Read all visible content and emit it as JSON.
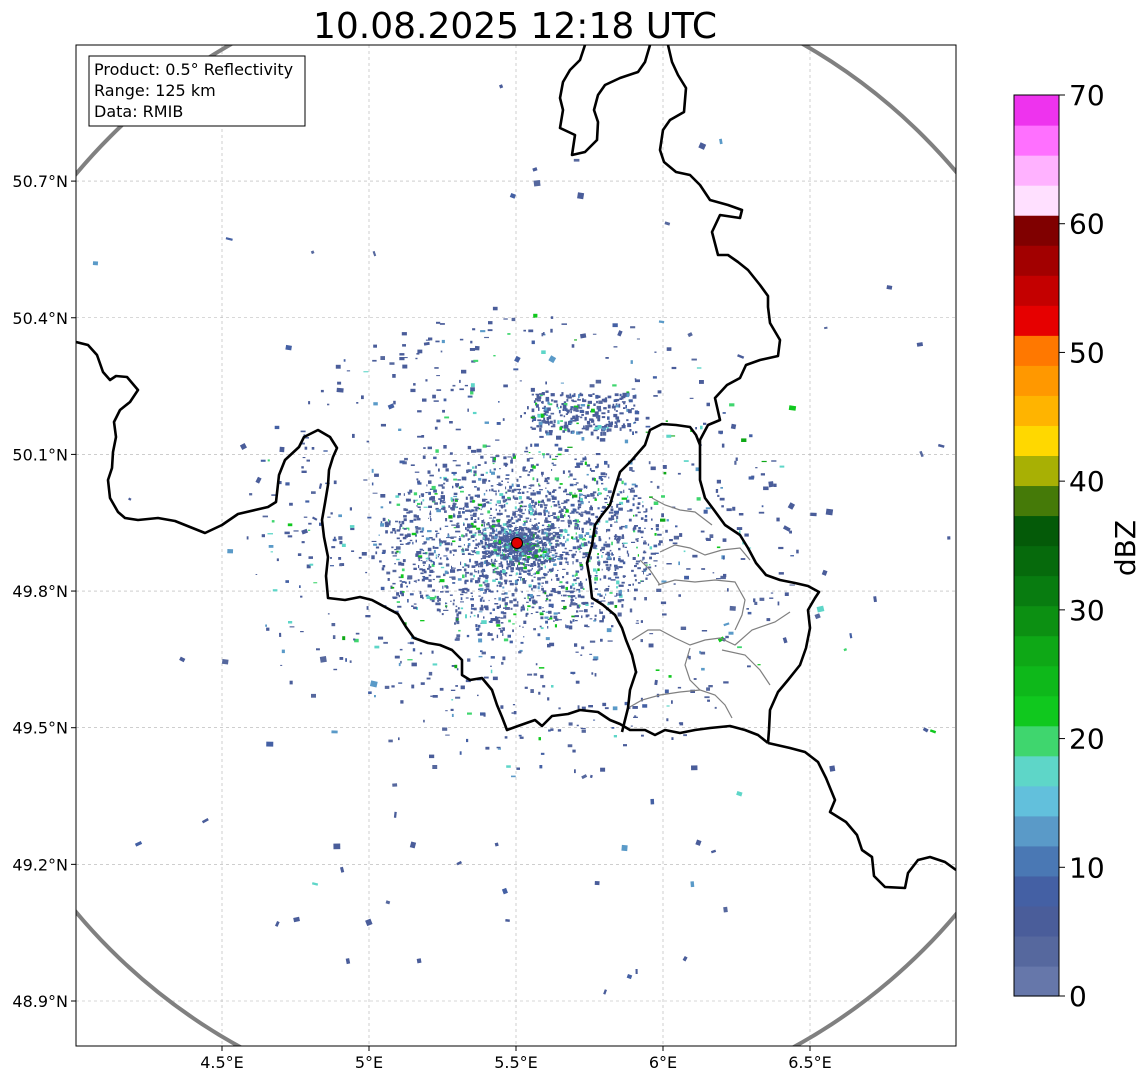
{
  "title": "10.08.2025 12:18 UTC",
  "info_box": {
    "product": "Product: 0.5° Reflectivity",
    "range": "Range: 125 km",
    "data": "Data: RMIB"
  },
  "map": {
    "lon_range": [
      4.0,
      7.0
    ],
    "lat_range": [
      48.8,
      51.0
    ],
    "x_ticks": [
      {
        "value": 4.5,
        "label": "4.5°E"
      },
      {
        "value": 5.0,
        "label": "5°E"
      },
      {
        "value": 5.5,
        "label": "5.5°E"
      },
      {
        "value": 6.0,
        "label": "6°E"
      },
      {
        "value": 6.5,
        "label": "6.5°E"
      }
    ],
    "y_ticks": [
      {
        "value": 48.9,
        "label": "48.9°N"
      },
      {
        "value": 49.2,
        "label": "49.2°N"
      },
      {
        "value": 49.5,
        "label": "49.5°N"
      },
      {
        "value": 49.8,
        "label": "49.8°N"
      },
      {
        "value": 50.1,
        "label": "50.1°N"
      },
      {
        "value": 50.4,
        "label": "50.4°N"
      },
      {
        "value": 50.7,
        "label": "50.7°N"
      }
    ],
    "grid": true,
    "radar_site": {
      "lon": 5.505,
      "lat": 49.914,
      "color": "#e00000"
    },
    "range_ring": {
      "range_km": 125,
      "color": "#808080"
    },
    "border_color": "#000000",
    "region_border_color": "#808080"
  },
  "colorbar": {
    "label": "dBZ",
    "min": 0,
    "max": 70,
    "step": 2.5,
    "tick_values": [
      0,
      10,
      20,
      30,
      40,
      50,
      60,
      70
    ],
    "tick_labels": [
      "0",
      "10",
      "20",
      "30",
      "40",
      "50",
      "60",
      "70"
    ],
    "colors": [
      "#6677aa",
      "#56689e",
      "#4a5d9a",
      "#4460a4",
      "#4a78b4",
      "#5a9ac8",
      "#62c0dc",
      "#5ed6c8",
      "#3fd66e",
      "#10c81e",
      "#0eb81a",
      "#0ea816",
      "#0c9012",
      "#087c10",
      "#066a0c",
      "#045a08",
      "#457a08",
      "#a8b004",
      "#ffd800",
      "#ffb400",
      "#ff9800",
      "#ff7800",
      "#e60000",
      "#c40000",
      "#a20000",
      "#800000",
      "#ffe0ff",
      "#ffb2ff",
      "#ff70ff",
      "#ee33ee"
    ]
  }
}
